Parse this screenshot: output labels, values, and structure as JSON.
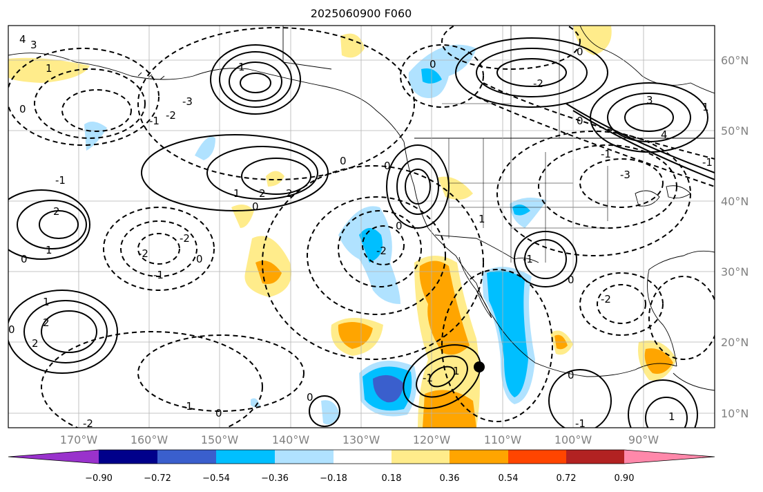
{
  "title": "2025060900 F060",
  "map": {
    "lat_labels": [
      "60°N",
      "50°N",
      "40°N",
      "30°N",
      "20°N",
      "10°N"
    ],
    "lon_labels": [
      "170°W",
      "160°W",
      "150°W",
      "140°W",
      "130°W",
      "120°W",
      "110°W",
      "100°W",
      "90°W"
    ],
    "storm_marker": {
      "lon": -113.5,
      "lat": 16.5
    },
    "contour_labels": [
      "0",
      "-1",
      "-2",
      "-3",
      "1",
      "2",
      "3",
      "4"
    ]
  },
  "colorbar": {
    "ticks": [
      "−0.90",
      "−0.72",
      "−0.54",
      "−0.36",
      "−0.18",
      "0.18",
      "0.36",
      "0.54",
      "0.72",
      "0.90"
    ],
    "colors": [
      "#9932cc",
      "#00008b",
      "#3a5fcd",
      "#00bfff",
      "#b0e2ff",
      "#ffffff",
      "#ffec8b",
      "#ffa500",
      "#ff4500",
      "#b22222",
      "#ff88aa"
    ]
  }
}
